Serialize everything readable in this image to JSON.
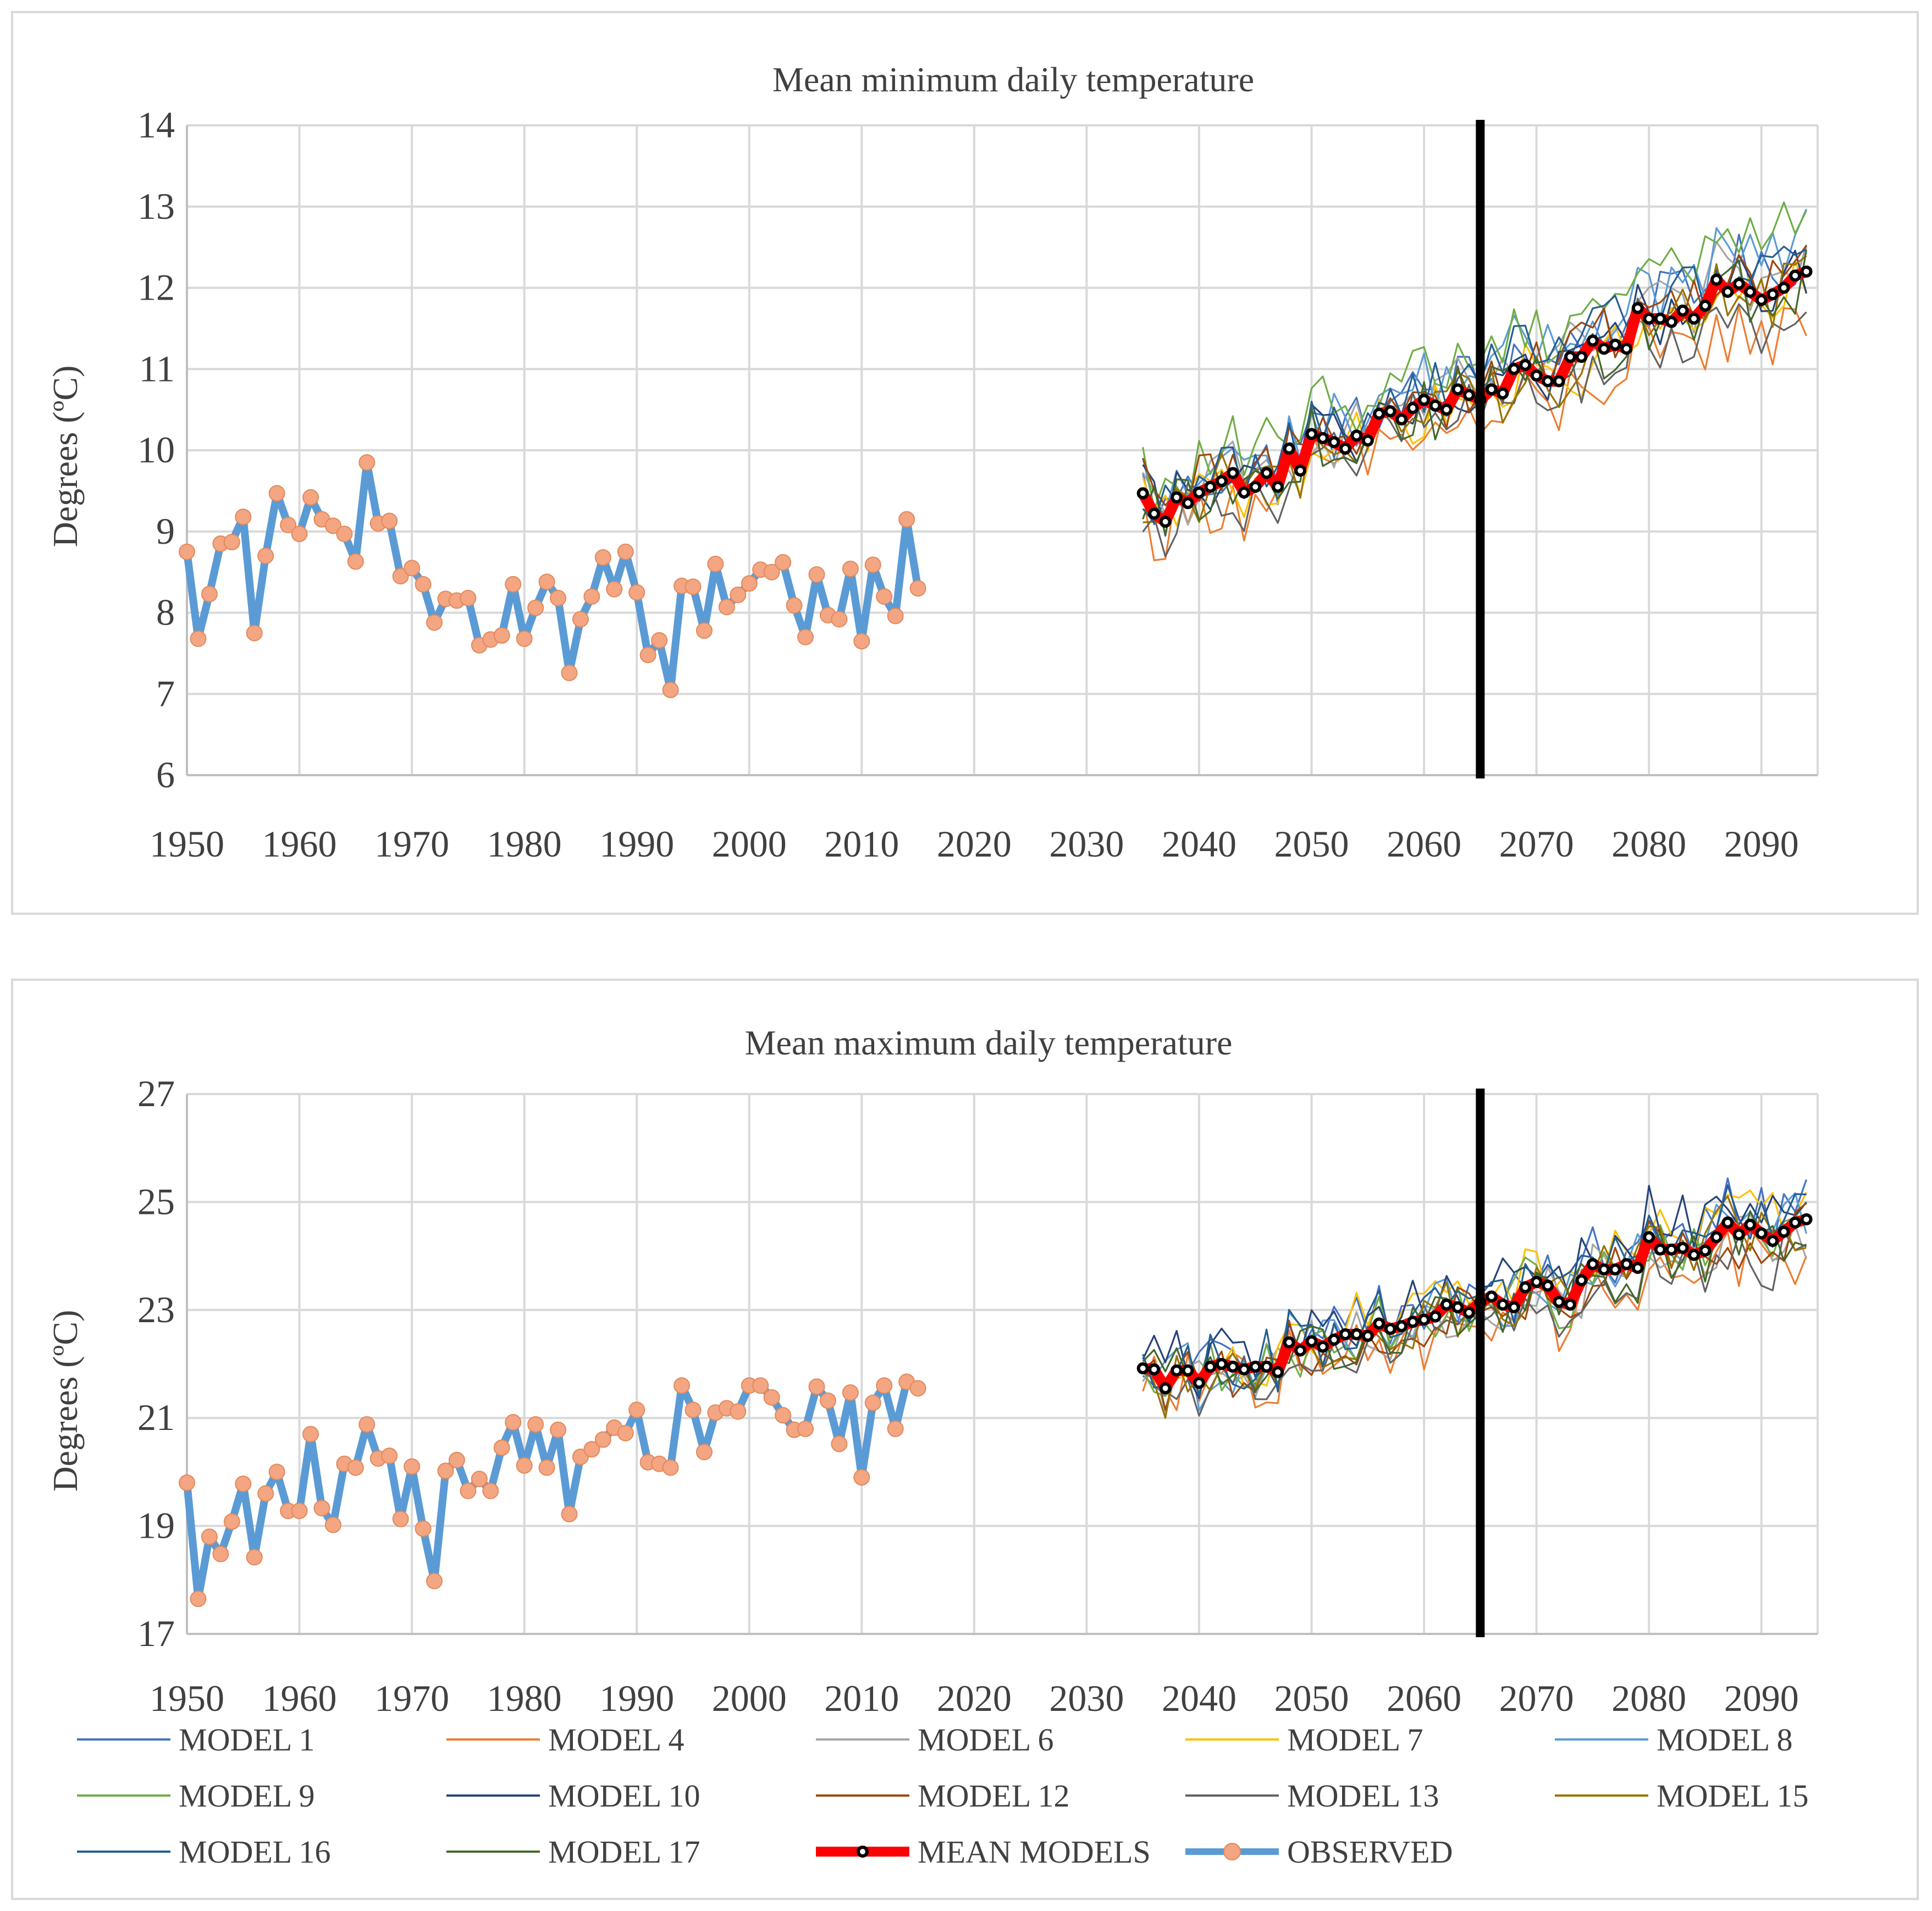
{
  "legend": {
    "entries": [
      {
        "label": "MODEL 1",
        "color": "#4472c4",
        "kind": "line"
      },
      {
        "label": "MODEL 4",
        "color": "#ed7d31",
        "kind": "line"
      },
      {
        "label": "MODEL 6",
        "color": "#a5a5a5",
        "kind": "line"
      },
      {
        "label": "MODEL 7",
        "color": "#ffc000",
        "kind": "line"
      },
      {
        "label": "MODEL 8",
        "color": "#5b9bd5",
        "kind": "line"
      },
      {
        "label": "MODEL 9",
        "color": "#70ad47",
        "kind": "line"
      },
      {
        "label": "MODEL 10",
        "color": "#264478",
        "kind": "line"
      },
      {
        "label": "MODEL 12",
        "color": "#9e480e",
        "kind": "line"
      },
      {
        "label": "MODEL 13",
        "color": "#636363",
        "kind": "line"
      },
      {
        "label": "MODEL 15",
        "color": "#997300",
        "kind": "line"
      },
      {
        "label": "MODEL 16",
        "color": "#255e91",
        "kind": "line"
      },
      {
        "label": "MODEL 17",
        "color": "#43682b",
        "kind": "line"
      },
      {
        "label": "MEAN MODELS",
        "color": "#ff0000",
        "kind": "mean"
      },
      {
        "label": "OBSERVED",
        "color": "#5b9bd5",
        "marker": "#f4a582",
        "kind": "observed"
      }
    ]
  },
  "chart_data": [
    {
      "id": "tmin",
      "type": "line",
      "title": "Mean minimum daily temperature",
      "xlabel": "",
      "ylabel": "Degrees (ºC)",
      "xlim": [
        1950,
        2095
      ],
      "ylim": [
        6,
        14
      ],
      "x_ticks": [
        1950,
        1960,
        1970,
        1980,
        1990,
        2000,
        2010,
        2020,
        2030,
        2040,
        2050,
        2060,
        2070,
        2080,
        2090
      ],
      "y_ticks": [
        6,
        7,
        8,
        9,
        10,
        11,
        12,
        13,
        14
      ],
      "vertical_marker_year": 2065,
      "observed": {
        "name": "OBSERVED",
        "x_start": 1950,
        "values": [
          8.75,
          7.68,
          8.23,
          8.85,
          8.87,
          9.18,
          7.75,
          8.7,
          9.47,
          9.08,
          8.97,
          9.42,
          9.15,
          9.07,
          8.97,
          8.63,
          9.85,
          9.1,
          9.13,
          8.45,
          8.55,
          8.35,
          7.88,
          8.17,
          8.15,
          8.18,
          7.6,
          7.67,
          7.72,
          8.35,
          7.68,
          8.06,
          8.38,
          8.18,
          7.26,
          7.92,
          8.2,
          8.68,
          8.29,
          8.75,
          8.25,
          7.48,
          7.66,
          7.05,
          8.33,
          8.32,
          7.78,
          8.6,
          8.07,
          8.22,
          8.36,
          8.53,
          8.5,
          8.62,
          8.09,
          7.7,
          8.47,
          7.97,
          7.92,
          8.54,
          7.65,
          8.59,
          8.2,
          7.96,
          9.15,
          8.3
        ]
      },
      "mean_models": {
        "name": "MEAN MODELS",
        "x_start": 2035,
        "values": [
          9.47,
          9.22,
          9.12,
          9.42,
          9.35,
          9.48,
          9.55,
          9.62,
          9.72,
          9.48,
          9.55,
          9.72,
          9.55,
          10.02,
          9.75,
          10.2,
          10.15,
          10.1,
          10.02,
          10.18,
          10.12,
          10.45,
          10.48,
          10.38,
          10.52,
          10.62,
          10.55,
          10.5,
          10.75,
          10.68,
          10.62,
          10.75,
          10.7,
          11.0,
          11.05,
          10.92,
          10.85,
          10.85,
          11.15,
          11.15,
          11.35,
          11.25,
          11.3,
          11.25,
          11.75,
          11.62,
          11.62,
          11.58,
          11.72,
          11.62,
          11.78,
          12.1,
          11.95,
          12.05,
          11.95,
          11.85,
          11.92,
          12.0,
          12.15,
          12.2
        ]
      }
    },
    {
      "id": "tmax",
      "type": "line",
      "title": "Mean maximum daily temperature",
      "xlabel": "",
      "ylabel": "Degrees (ºC)",
      "xlim": [
        1950,
        2095
      ],
      "ylim": [
        17,
        27
      ],
      "x_ticks": [
        1950,
        1960,
        1970,
        1980,
        1990,
        2000,
        2010,
        2020,
        2030,
        2040,
        2050,
        2060,
        2070,
        2080,
        2090
      ],
      "y_ticks": [
        17,
        19,
        21,
        23,
        25,
        27
      ],
      "vertical_marker_year": 2065,
      "observed": {
        "name": "OBSERVED",
        "x_start": 1950,
        "values": [
          19.8,
          17.65,
          18.8,
          18.48,
          19.08,
          19.78,
          18.42,
          19.6,
          20.0,
          19.28,
          19.28,
          20.7,
          19.33,
          19.02,
          20.15,
          20.08,
          20.88,
          20.25,
          20.3,
          19.13,
          20.1,
          18.95,
          17.98,
          20.02,
          20.22,
          19.65,
          19.87,
          19.65,
          20.45,
          20.92,
          20.12,
          20.88,
          20.08,
          20.78,
          19.22,
          20.28,
          20.42,
          20.6,
          20.82,
          20.72,
          21.15,
          20.18,
          20.15,
          20.08,
          21.6,
          21.15,
          20.37,
          21.1,
          21.18,
          21.12,
          21.6,
          21.6,
          21.38,
          21.05,
          20.78,
          20.8,
          21.58,
          21.32,
          20.52,
          21.47,
          19.9,
          21.28,
          21.6,
          20.8,
          21.67,
          21.55
        ]
      },
      "mean_models": {
        "name": "MEAN MODELS",
        "x_start": 2035,
        "values": [
          21.92,
          21.9,
          21.55,
          21.88,
          21.88,
          21.65,
          21.95,
          22.0,
          21.95,
          21.9,
          21.95,
          21.95,
          21.85,
          22.4,
          22.25,
          22.42,
          22.32,
          22.45,
          22.55,
          22.55,
          22.52,
          22.75,
          22.65,
          22.7,
          22.78,
          22.82,
          22.88,
          23.1,
          23.05,
          22.95,
          23.15,
          23.25,
          23.1,
          23.05,
          23.42,
          23.52,
          23.45,
          23.15,
          23.1,
          23.55,
          23.85,
          23.75,
          23.75,
          23.85,
          23.78,
          24.35,
          24.12,
          24.12,
          24.15,
          24.02,
          24.1,
          24.35,
          24.62,
          24.4,
          24.58,
          24.42,
          24.28,
          24.45,
          24.62,
          24.68
        ]
      }
    }
  ],
  "model_spread": {
    "note": "Individual model projections (MODEL 1 ... MODEL 17) shown as thin lines around MEAN MODELS, 2035-2094",
    "tmin_offsets_per_model": [
      0.25,
      -0.55,
      0.1,
      -0.15,
      0.45,
      0.75,
      0.05,
      0.2,
      -0.3,
      -0.05,
      0.35,
      -0.1
    ],
    "tmax_offsets_per_model": [
      0.35,
      -0.6,
      -0.2,
      0.4,
      0.1,
      0.05,
      0.5,
      -0.15,
      -0.45,
      -0.05,
      0.3,
      -0.2
    ]
  }
}
